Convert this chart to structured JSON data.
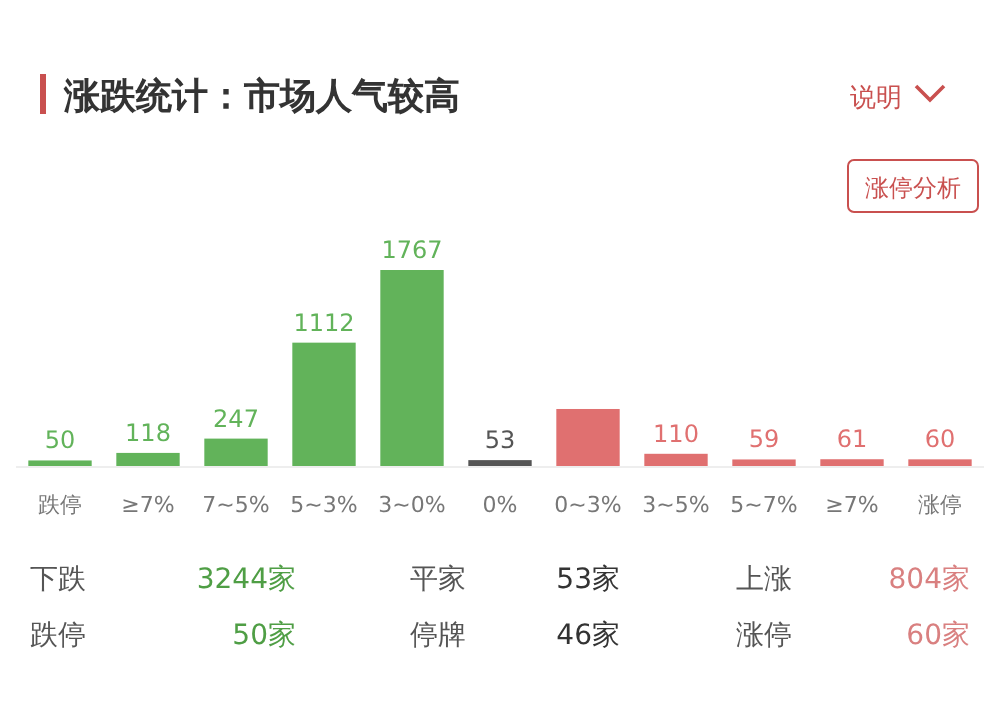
{
  "chart_data": {
    "type": "bar",
    "title": "涨跌统计：市场人气较高",
    "categories": [
      "跌停",
      "≥7%",
      "7~5%",
      "5~3%",
      "3~0%",
      "0%",
      "0~3%",
      "3~5%",
      "5~7%",
      "≥7%",
      "涨停"
    ],
    "values": [
      50,
      118,
      247,
      1112,
      1767,
      53,
      514,
      110,
      59,
      61,
      60
    ],
    "colors": [
      "#62b35a",
      "#62b35a",
      "#62b35a",
      "#62b35a",
      "#62b35a",
      "#555555",
      "#e07070",
      "#e07070",
      "#e07070",
      "#e07070",
      "#e07070"
    ],
    "value_labels": [
      "50",
      "118",
      "247",
      "1112",
      "1767",
      "53",
      null,
      "110",
      "59",
      "61",
      "60"
    ],
    "annotations": [
      "说明",
      "涨停分析",
      "下跌",
      "3244家",
      "平家",
      "53家",
      "上涨",
      "804家",
      "跌停",
      "50家",
      "停牌",
      "46家",
      "涨停",
      "60家"
    ]
  }
}
